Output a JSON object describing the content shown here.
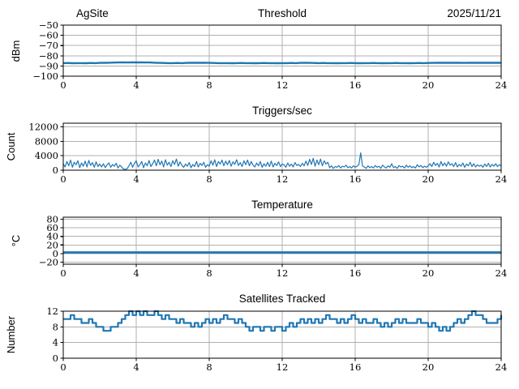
{
  "figure": {
    "date": "2025/11/21",
    "site": "AgSite",
    "background": "#ffffff"
  },
  "style": {
    "line_color": "#1f77b4",
    "grid_color": "#b0b0b0",
    "spine_color": "#000000"
  },
  "chart_data": [
    {
      "type": "line",
      "name": "threshold",
      "title_left": "AgSite",
      "title_center": "Threshold",
      "title_right": "2025/11/21",
      "ylabel": "dBm",
      "xlabel": "",
      "xlim": [
        0,
        24
      ],
      "ylim": [
        -100,
        -50
      ],
      "xticks": [
        0,
        4,
        8,
        12,
        16,
        20,
        24
      ],
      "yticks": [
        -50,
        -60,
        -70,
        -80,
        -90,
        -100
      ],
      "grid": true,
      "x_start": 0,
      "x_step": 0.25,
      "line_color": "#1f77b4",
      "line_width": 2.4,
      "values": [
        -87.2,
        -87.1,
        -87.3,
        -87.2,
        -87.2,
        -87.3,
        -87.1,
        -87.2,
        -87.0,
        -86.9,
        -86.8,
        -86.7,
        -86.6,
        -86.5,
        -86.6,
        -86.5,
        -86.4,
        -86.5,
        -86.6,
        -86.6,
        -86.8,
        -87.0,
        -87.1,
        -87.2,
        -87.2,
        -87.1,
        -87.2,
        -87.0,
        -86.9,
        -86.8,
        -86.9,
        -86.8,
        -87.0,
        -87.1,
        -87.2,
        -87.2,
        -87.2,
        -87.3,
        -87.2,
        -87.1,
        -87.2,
        -87.2,
        -87.3,
        -87.2,
        -87.1,
        -87.2,
        -87.2,
        -87.3,
        -87.2,
        -87.2,
        -87.1,
        -87.2,
        -87.0,
        -86.9,
        -87.0,
        -87.1,
        -87.2,
        -87.1,
        -87.2,
        -87.2,
        -87.3,
        -87.2,
        -87.2,
        -87.1,
        -87.2,
        -87.3,
        -87.2,
        -87.2,
        -87.1,
        -87.2,
        -87.3,
        -87.2,
        -87.2,
        -87.1,
        -87.2,
        -87.2,
        -87.3,
        -87.2,
        -87.1,
        -87.2,
        -87.1,
        -87.0,
        -86.9,
        -86.9,
        -86.8,
        -86.9,
        -86.8,
        -86.9,
        -87.0,
        -86.9,
        -86.8,
        -86.9,
        -86.9,
        -86.8,
        -86.9,
        -86.8,
        -86.9
      ]
    },
    {
      "type": "line",
      "name": "triggers",
      "title": "Triggers/sec",
      "ylabel": "Count",
      "xlabel": "",
      "xlim": [
        0,
        24
      ],
      "ylim": [
        0,
        13000
      ],
      "xticks": [
        0,
        4,
        8,
        12,
        16,
        20,
        24
      ],
      "yticks": [
        0,
        4000,
        8000,
        12000
      ],
      "grid": true,
      "x_start": 0,
      "x_step": 0.1,
      "line_color": "#1f77b4",
      "line_width": 1.2,
      "values": [
        1800,
        900,
        2400,
        1200,
        2800,
        800,
        2200,
        1500,
        2600,
        700,
        2000,
        1100,
        2500,
        900,
        2700,
        1300,
        2100,
        800,
        2300,
        1000,
        1700,
        900,
        1800,
        700,
        1500,
        2000,
        800,
        1600,
        1100,
        1900,
        600,
        1400,
        900,
        300,
        250,
        400,
        1200,
        2200,
        800,
        1900,
        2600,
        900,
        1500,
        2400,
        700,
        2000,
        1200,
        2700,
        1000,
        1800,
        2800,
        1200,
        3000,
        1500,
        2500,
        900,
        2900,
        1400,
        2200,
        1000,
        2600,
        1600,
        3100,
        1100,
        2300,
        1300,
        800,
        1700,
        1100,
        2100,
        700,
        1600,
        1000,
        2400,
        900,
        1900,
        1300,
        2200,
        800,
        1500,
        1100,
        2600,
        1400,
        2900,
        1000,
        2400,
        1700,
        2800,
        1200,
        2500,
        1500,
        2700,
        1100,
        2300,
        1600,
        2900,
        1300,
        2100,
        1000,
        2600,
        1500,
        2800,
        1200,
        2400,
        1400,
        900,
        2000,
        1200,
        2400,
        800,
        1800,
        1100,
        2200,
        1000,
        2500,
        900,
        1900,
        1300,
        2300,
        1000,
        1700,
        1500,
        800,
        2000,
        1100,
        1700,
        900,
        2100,
        1300,
        1600,
        1000,
        1900,
        1200,
        2500,
        1300,
        3000,
        1600,
        3300,
        1100,
        2800,
        1500,
        3100,
        1200,
        2600,
        1700,
        2200,
        700,
        1200,
        500,
        1000,
        800,
        1300,
        600,
        1100,
        900,
        1400,
        700,
        1000,
        600,
        1200,
        800,
        1100,
        1500,
        4800,
        1200,
        900,
        500,
        1200,
        700,
        1000,
        600,
        1300,
        800,
        1100,
        500,
        1400,
        900,
        600,
        1200,
        800,
        1800,
        700,
        1000,
        500,
        1300,
        900,
        1100,
        600,
        1400,
        800,
        1200,
        700,
        1000,
        600,
        1500,
        900,
        1300,
        700,
        1100,
        800,
        1200,
        1800,
        1000,
        2200,
        1300,
        1900,
        900,
        2400,
        1200,
        2000,
        1100,
        2300,
        1400,
        1800,
        1000,
        2100,
        900,
        1600,
        1100,
        2000,
        800,
        1700,
        1200,
        2200,
        1000,
        1800,
        900,
        1500,
        1100,
        1400,
        800,
        1700,
        1000,
        1900,
        900,
        1600,
        1100,
        1800,
        1000,
        1500,
        1200
      ]
    },
    {
      "type": "line",
      "name": "temperature",
      "title": "Temperature",
      "ylabel": "°C",
      "xlabel": "",
      "xlim": [
        0,
        24
      ],
      "ylim": [
        -25,
        85
      ],
      "xticks": [
        0,
        4,
        8,
        12,
        16,
        20,
        24
      ],
      "yticks": [
        -20,
        0,
        20,
        40,
        60,
        80
      ],
      "grid": true,
      "x_start": 0,
      "x_step": 6,
      "line_color": "#1f77b4",
      "line_width": 2.8,
      "values": [
        2.5,
        2.5,
        2.5,
        2.5,
        2.5
      ]
    },
    {
      "type": "step",
      "name": "satellites",
      "title": "Satellites Tracked",
      "ylabel": "Number",
      "xlabel": "",
      "xlim": [
        0,
        24
      ],
      "ylim": [
        0,
        12
      ],
      "xticks": [
        0,
        4,
        8,
        12,
        16,
        20,
        24
      ],
      "yticks": [
        0,
        4,
        8,
        12
      ],
      "grid": true,
      "x_start": 0,
      "x_step": 0.2,
      "line_color": "#1f77b4",
      "line_width": 2.2,
      "values": [
        10,
        10,
        11,
        10,
        10,
        9,
        9,
        10,
        9,
        8,
        8,
        7,
        7,
        8,
        8,
        9,
        10,
        11,
        12,
        11,
        12,
        11,
        12,
        11,
        11,
        12,
        11,
        10,
        11,
        10,
        10,
        9,
        10,
        9,
        9,
        8,
        9,
        8,
        9,
        10,
        9,
        10,
        9,
        10,
        11,
        10,
        10,
        9,
        10,
        9,
        8,
        7,
        8,
        8,
        7,
        8,
        8,
        7,
        8,
        8,
        7,
        8,
        9,
        8,
        9,
        10,
        9,
        10,
        9,
        10,
        9,
        10,
        11,
        10,
        10,
        9,
        10,
        9,
        10,
        11,
        10,
        9,
        10,
        9,
        9,
        10,
        9,
        8,
        9,
        8,
        9,
        10,
        9,
        10,
        9,
        9,
        9,
        10,
        9,
        9,
        8,
        9,
        8,
        7,
        8,
        7,
        8,
        9,
        10,
        9,
        10,
        11,
        12,
        11,
        11,
        10,
        9,
        9,
        9,
        10,
        11
      ]
    }
  ]
}
